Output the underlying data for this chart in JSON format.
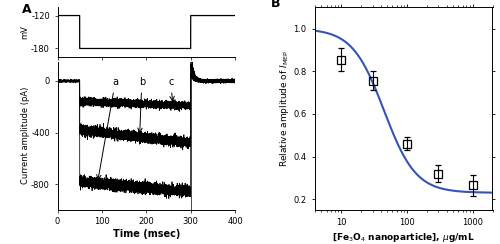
{
  "panel_A_label": "A",
  "panel_B_label": "B",
  "voltage_protocol": {
    "t": [
      0,
      49.9,
      50,
      300,
      300.1,
      400
    ],
    "v": [
      -120,
      -120,
      -180,
      -180,
      -120,
      -120
    ],
    "ylim": [
      -195,
      -105
    ],
    "yticks": [
      -180,
      -120
    ],
    "xlim": [
      0,
      400
    ],
    "xticks": [
      0,
      100,
      200,
      300,
      400
    ]
  },
  "current_traces": {
    "xlim": [
      0,
      400
    ],
    "ylim": [
      -1000,
      150
    ],
    "yticks": [
      0,
      -400,
      -800
    ],
    "xticks": [
      0,
      100,
      200,
      300,
      400
    ],
    "pulse_start": 50,
    "pulse_end": 300,
    "trace_a_level": -780,
    "trace_a_drift": -80,
    "trace_b_level": -380,
    "trace_b_drift": -100,
    "trace_c_level": -160,
    "trace_c_drift": -30,
    "noise_amp": 20,
    "label_a": "a",
    "label_b": "b",
    "label_c": "c"
  },
  "hill_params": {
    "ic50": 45,
    "max_inhibition": 0.77,
    "hill": 1.8,
    "baseline": 1.0,
    "x_min": 3,
    "x_max": 2000
  },
  "data_points": {
    "x": [
      10,
      30,
      100,
      300,
      1000
    ],
    "y": [
      0.855,
      0.755,
      0.46,
      0.32,
      0.265
    ],
    "yerr": [
      0.055,
      0.045,
      0.03,
      0.04,
      0.05
    ]
  },
  "panel_B": {
    "xlim": [
      4,
      2000
    ],
    "ylim": [
      0.15,
      1.1
    ],
    "yticks": [
      0.2,
      0.4,
      0.6,
      0.8,
      1.0
    ],
    "xticks": [
      10,
      100,
      1000
    ],
    "xticklabels": [
      "10",
      "100",
      "1000"
    ],
    "curve_color": "#3355bb"
  }
}
